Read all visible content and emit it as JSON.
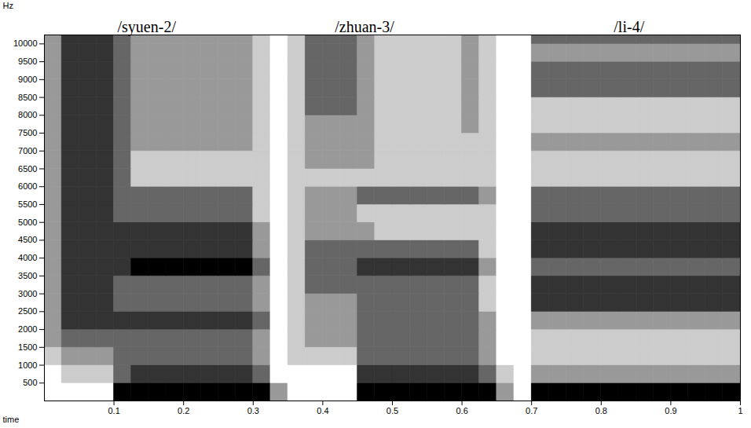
{
  "chart_data": {
    "type": "heatmap",
    "x_label": "time",
    "y_label": "Hz",
    "annotations": [
      {
        "text": "/syuen-2/",
        "x": 0.147
      },
      {
        "text": "/zhuan-3/",
        "x": 0.46
      },
      {
        "text": "/li-4/",
        "x": 0.84
      }
    ],
    "xlim": [
      0,
      1
    ],
    "ylim": [
      0,
      10250
    ],
    "xticks": [
      0.1,
      0.2,
      0.3,
      0.4,
      0.5,
      0.6,
      0.7,
      0.8,
      0.9,
      1
    ],
    "yticks": [
      500,
      1000,
      1500,
      2000,
      2500,
      3000,
      3500,
      4000,
      4500,
      5000,
      5500,
      6000,
      6500,
      7000,
      7500,
      8000,
      8500,
      9000,
      9500,
      10000
    ],
    "time_bins": [
      0,
      0.025,
      0.05,
      0.075,
      0.1,
      0.125,
      0.15,
      0.175,
      0.2,
      0.225,
      0.25,
      0.275,
      0.3,
      0.325,
      0.35,
      0.375,
      0.4,
      0.425,
      0.45,
      0.475,
      0.5,
      0.525,
      0.55,
      0.575,
      0.6,
      0.625,
      0.65,
      0.675,
      0.7,
      0.725,
      0.75,
      0.775,
      0.8,
      0.825,
      0.85,
      0.875,
      0.9,
      0.925,
      0.95,
      0.975,
      1
    ],
    "frequency_bins": [
      0,
      500,
      1000,
      1500,
      2000,
      2500,
      3000,
      3500,
      4000,
      4500,
      5000,
      5500,
      6000,
      6500,
      7000,
      7500,
      8000,
      8500,
      9000,
      9500,
      10000,
      10500
    ],
    "intensity_range": [
      0,
      5
    ],
    "intensity": [
      [
        0,
        0,
        0,
        0,
        5,
        5,
        5,
        5,
        5,
        5,
        5,
        5,
        5,
        2,
        0,
        0,
        0,
        0,
        5,
        5,
        5,
        5,
        5,
        5,
        5,
        5,
        2,
        0,
        5,
        5,
        5,
        5,
        5,
        5,
        5,
        5,
        5,
        5,
        5,
        5
      ],
      [
        0,
        1,
        1,
        1,
        3,
        4,
        4,
        4,
        4,
        4,
        4,
        4,
        3,
        0,
        0,
        0,
        0,
        0,
        4,
        4,
        4,
        4,
        4,
        4,
        4,
        3,
        1,
        0,
        2,
        2,
        2,
        2,
        2,
        2,
        2,
        2,
        2,
        2,
        2,
        2
      ],
      [
        1,
        2,
        2,
        2,
        3,
        3,
        3,
        3,
        3,
        3,
        3,
        3,
        2,
        0,
        1,
        1,
        1,
        1,
        3,
        3,
        3,
        3,
        3,
        3,
        3,
        2,
        0,
        0,
        1,
        1,
        1,
        1,
        1,
        1,
        1,
        1,
        1,
        1,
        1,
        1
      ],
      [
        2,
        3,
        3,
        3,
        3,
        3,
        3,
        3,
        3,
        3,
        3,
        3,
        2,
        0,
        1,
        2,
        2,
        2,
        3,
        3,
        3,
        3,
        3,
        3,
        3,
        2,
        0,
        0,
        1,
        1,
        1,
        1,
        1,
        1,
        1,
        1,
        1,
        1,
        1,
        1
      ],
      [
        2,
        4,
        4,
        4,
        4,
        4,
        4,
        4,
        4,
        4,
        4,
        4,
        3,
        0,
        1,
        2,
        2,
        2,
        3,
        3,
        3,
        3,
        3,
        3,
        3,
        2,
        0,
        0,
        2,
        2,
        2,
        2,
        2,
        2,
        2,
        2,
        2,
        2,
        2,
        2
      ],
      [
        2,
        4,
        4,
        4,
        3,
        3,
        3,
        3,
        3,
        3,
        3,
        3,
        2,
        0,
        1,
        2,
        2,
        2,
        3,
        3,
        3,
        3,
        3,
        3,
        3,
        1,
        0,
        0,
        4,
        4,
        4,
        4,
        4,
        4,
        4,
        4,
        4,
        4,
        4,
        4
      ],
      [
        2,
        4,
        4,
        4,
        3,
        3,
        3,
        3,
        3,
        3,
        3,
        3,
        2,
        0,
        1,
        3,
        3,
        3,
        3,
        3,
        3,
        3,
        3,
        3,
        3,
        1,
        0,
        0,
        4,
        4,
        4,
        4,
        4,
        4,
        4,
        4,
        4,
        4,
        4,
        4
      ],
      [
        2,
        4,
        4,
        4,
        4,
        5,
        5,
        5,
        5,
        5,
        5,
        5,
        3,
        0,
        1,
        3,
        3,
        3,
        4,
        4,
        4,
        4,
        4,
        4,
        4,
        2,
        0,
        0,
        3,
        3,
        3,
        3,
        3,
        3,
        3,
        3,
        3,
        3,
        3,
        3
      ],
      [
        2,
        4,
        4,
        4,
        4,
        4,
        4,
        4,
        4,
        4,
        4,
        4,
        2,
        0,
        1,
        3,
        3,
        3,
        3,
        3,
        3,
        3,
        3,
        3,
        3,
        1,
        0,
        0,
        4,
        4,
        4,
        4,
        4,
        4,
        4,
        4,
        4,
        4,
        4,
        4
      ],
      [
        2,
        4,
        4,
        4,
        4,
        4,
        4,
        4,
        4,
        4,
        4,
        4,
        2,
        0,
        1,
        2,
        2,
        2,
        2,
        1,
        1,
        1,
        1,
        1,
        1,
        1,
        0,
        0,
        4,
        4,
        4,
        4,
        4,
        4,
        4,
        4,
        4,
        4,
        4,
        4
      ],
      [
        2,
        4,
        4,
        4,
        3,
        3,
        3,
        3,
        3,
        3,
        3,
        3,
        1,
        0,
        1,
        2,
        2,
        2,
        1,
        1,
        1,
        1,
        1,
        1,
        1,
        1,
        0,
        0,
        3,
        3,
        3,
        3,
        3,
        3,
        3,
        3,
        3,
        3,
        3,
        3
      ],
      [
        2,
        4,
        4,
        4,
        3,
        3,
        3,
        3,
        3,
        3,
        3,
        3,
        1,
        0,
        1,
        2,
        2,
        2,
        3,
        3,
        3,
        3,
        3,
        3,
        3,
        2,
        0,
        0,
        3,
        3,
        3,
        3,
        3,
        3,
        3,
        3,
        3,
        3,
        3,
        3
      ],
      [
        2,
        4,
        4,
        4,
        3,
        1,
        1,
        1,
        1,
        1,
        1,
        1,
        1,
        0,
        1,
        1,
        1,
        1,
        1,
        1,
        1,
        1,
        1,
        1,
        1,
        1,
        0,
        0,
        1,
        1,
        1,
        1,
        1,
        1,
        1,
        1,
        1,
        1,
        1,
        1
      ],
      [
        2,
        4,
        4,
        4,
        3,
        1,
        1,
        1,
        1,
        1,
        1,
        1,
        1,
        0,
        1,
        2,
        2,
        2,
        2,
        1,
        1,
        1,
        1,
        1,
        1,
        1,
        0,
        0,
        1,
        1,
        1,
        1,
        1,
        1,
        1,
        1,
        1,
        1,
        1,
        1
      ],
      [
        2,
        4,
        4,
        4,
        3,
        2,
        2,
        2,
        2,
        2,
        2,
        2,
        1,
        0,
        1,
        2,
        2,
        2,
        2,
        1,
        1,
        1,
        1,
        1,
        1,
        1,
        0,
        0,
        2,
        2,
        2,
        2,
        2,
        2,
        2,
        2,
        2,
        2,
        2,
        2
      ],
      [
        2,
        4,
        4,
        4,
        3,
        2,
        2,
        2,
        2,
        2,
        2,
        2,
        1,
        0,
        1,
        2,
        2,
        2,
        2,
        1,
        1,
        1,
        1,
        1,
        2,
        1,
        0,
        0,
        1,
        1,
        1,
        1,
        1,
        1,
        1,
        1,
        1,
        1,
        1,
        1
      ],
      [
        2,
        4,
        4,
        4,
        3,
        2,
        2,
        2,
        2,
        2,
        2,
        2,
        1,
        0,
        1,
        3,
        3,
        3,
        2,
        1,
        1,
        1,
        1,
        1,
        2,
        1,
        0,
        0,
        1,
        1,
        1,
        1,
        1,
        1,
        1,
        1,
        1,
        1,
        1,
        1
      ],
      [
        2,
        4,
        4,
        4,
        3,
        2,
        2,
        2,
        2,
        2,
        2,
        2,
        1,
        0,
        1,
        3,
        3,
        3,
        2,
        1,
        1,
        1,
        1,
        1,
        2,
        1,
        0,
        0,
        3,
        3,
        3,
        3,
        3,
        3,
        3,
        3,
        3,
        3,
        3,
        3
      ],
      [
        2,
        4,
        4,
        4,
        3,
        2,
        2,
        2,
        2,
        2,
        2,
        2,
        1,
        0,
        1,
        3,
        3,
        3,
        2,
        1,
        1,
        1,
        1,
        1,
        2,
        1,
        0,
        0,
        3,
        3,
        3,
        3,
        3,
        3,
        3,
        3,
        3,
        3,
        3,
        3
      ],
      [
        2,
        4,
        4,
        4,
        3,
        2,
        2,
        2,
        2,
        2,
        2,
        2,
        1,
        0,
        1,
        3,
        3,
        3,
        2,
        1,
        1,
        1,
        1,
        1,
        2,
        1,
        0,
        0,
        2,
        2,
        2,
        2,
        2,
        2,
        2,
        2,
        2,
        2,
        2,
        2
      ],
      [
        2,
        4,
        4,
        4,
        3,
        2,
        2,
        2,
        2,
        2,
        2,
        2,
        1,
        0,
        1,
        3,
        3,
        3,
        2,
        1,
        1,
        1,
        1,
        1,
        2,
        1,
        0,
        0,
        3,
        3,
        3,
        3,
        3,
        3,
        3,
        3,
        3,
        3,
        3,
        3
      ]
    ]
  }
}
